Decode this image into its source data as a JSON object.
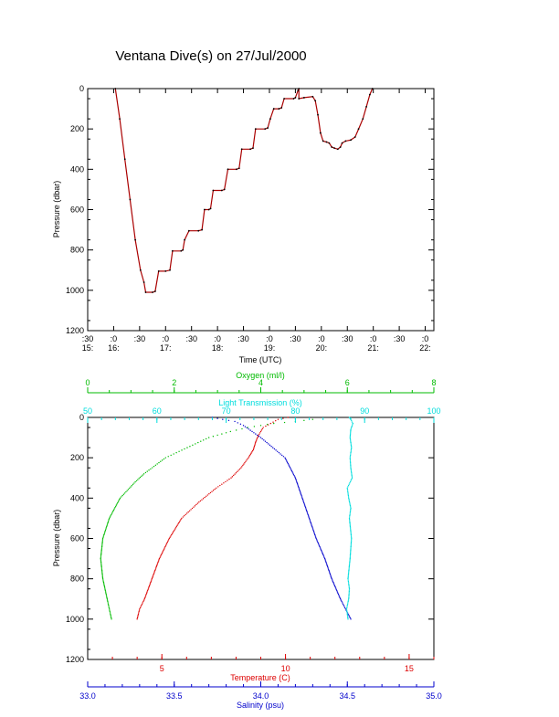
{
  "page_title": "Ventana Dive(s) on 27/Jul/2000",
  "colors": {
    "black": "#000000",
    "dive_track": "#aa0000",
    "temperature": "#dd0000",
    "salinity": "#0000cc",
    "oxygen": "#00bb00",
    "light_transmission": "#00dddd"
  },
  "chart_data": [
    {
      "type": "line",
      "name": "dive-profile",
      "xlabel": "Time (UTC)",
      "ylabel": "Pressure (dbar)",
      "xlim": [
        "15:30",
        "22:10"
      ],
      "ylim": [
        1200,
        0
      ],
      "y_ticks": [
        "0",
        "200",
        "400",
        "600",
        "800",
        "1000",
        "1200"
      ],
      "x_ticks": [
        {
          "t": "15:30",
          "minute": ":30",
          "hour": "15:"
        },
        {
          "t": "16:00",
          "minute": ":0",
          "hour": "16:"
        },
        {
          "t": "16:30",
          "minute": ":30",
          "hour": ""
        },
        {
          "t": "17:00",
          "minute": ":0",
          "hour": "17:"
        },
        {
          "t": "17:30",
          "minute": ":30",
          "hour": ""
        },
        {
          "t": "18:00",
          "minute": ":0",
          "hour": "18:"
        },
        {
          "t": "18:30",
          "minute": ":30",
          "hour": ""
        },
        {
          "t": "19:00",
          "minute": ":0",
          "hour": "19:"
        },
        {
          "t": "19:30",
          "minute": ":30",
          "hour": ""
        },
        {
          "t": "20:00",
          "minute": ":0",
          "hour": "20:"
        },
        {
          "t": "20:30",
          "minute": ":30",
          "hour": ""
        },
        {
          "t": "21:00",
          "minute": ":0",
          "hour": "21:"
        },
        {
          "t": "21:30",
          "minute": ":30",
          "hour": ""
        },
        {
          "t": "22:00",
          "minute": ":0",
          "hour": "22:"
        }
      ],
      "series": [
        {
          "points": [
            [
              "16:02",
              0
            ],
            [
              "16:07",
              150
            ],
            [
              "16:13",
              350
            ],
            [
              "16:19",
              550
            ],
            [
              "16:25",
              750
            ],
            [
              "16:31",
              900
            ],
            [
              "16:35",
              960
            ],
            [
              "16:37",
              1010
            ],
            [
              "16:45",
              1010
            ],
            [
              "16:48",
              1005
            ],
            [
              "16:52",
              905
            ],
            [
              "17:00",
              905
            ],
            [
              "17:05",
              900
            ],
            [
              "17:08",
              805
            ],
            [
              "17:18",
              805
            ],
            [
              "17:20",
              800
            ],
            [
              "17:22",
              750
            ],
            [
              "17:27",
              705
            ],
            [
              "17:38",
              705
            ],
            [
              "17:42",
              700
            ],
            [
              "17:45",
              600
            ],
            [
              "17:50",
              600
            ],
            [
              "17:52",
              595
            ],
            [
              "17:55",
              505
            ],
            [
              "18:05",
              505
            ],
            [
              "18:08",
              500
            ],
            [
              "18:12",
              400
            ],
            [
              "18:22",
              400
            ],
            [
              "18:25",
              395
            ],
            [
              "18:28",
              300
            ],
            [
              "18:38",
              300
            ],
            [
              "18:41",
              295
            ],
            [
              "18:44",
              200
            ],
            [
              "18:55",
              200
            ],
            [
              "18:58",
              195
            ],
            [
              "19:01",
              150
            ],
            [
              "19:05",
              100
            ],
            [
              "19:11",
              100
            ],
            [
              "19:14",
              95
            ],
            [
              "19:17",
              50
            ],
            [
              "19:28",
              50
            ],
            [
              "19:30",
              45
            ],
            [
              "19:33",
              10
            ],
            [
              "19:34",
              0
            ],
            [
              "19:34",
              50
            ],
            [
              "19:40",
              45
            ],
            [
              "19:50",
              40
            ],
            [
              "19:53",
              60
            ],
            [
              "19:56",
              130
            ],
            [
              "19:59",
              220
            ],
            [
              "20:02",
              260
            ],
            [
              "20:06",
              265
            ],
            [
              "20:09",
              270
            ],
            [
              "20:12",
              290
            ],
            [
              "20:15",
              295
            ],
            [
              "20:19",
              300
            ],
            [
              "20:22",
              290
            ],
            [
              "20:24",
              270
            ],
            [
              "20:28",
              260
            ],
            [
              "20:34",
              255
            ],
            [
              "20:39",
              240
            ],
            [
              "20:43",
              200
            ],
            [
              "20:48",
              150
            ],
            [
              "20:52",
              90
            ],
            [
              "20:56",
              30
            ],
            [
              "20:59",
              0
            ]
          ]
        }
      ]
    },
    {
      "type": "scatter",
      "name": "ctd-profiles",
      "ylabel": "Pressure (dbar)",
      "ylim": [
        1200,
        0
      ],
      "y_ticks": [
        "0",
        "200",
        "400",
        "600",
        "800",
        "1000",
        "1200"
      ],
      "axes": {
        "temperature": {
          "label": "Temperature (C)",
          "range": [
            2,
            16
          ],
          "ticks": [
            "5",
            "10",
            "15"
          ]
        },
        "salinity": {
          "label": "Salinity (psu)",
          "range": [
            33.0,
            35.0
          ],
          "ticks": [
            "33.0",
            "33.5",
            "34.0",
            "34.5",
            "35.0"
          ]
        },
        "oxygen": {
          "label": "Oxygen (ml/l)",
          "range": [
            0,
            8
          ],
          "ticks": [
            "0",
            "2",
            "4",
            "6",
            "8"
          ]
        },
        "light_transmission": {
          "label": "Light Transmission (%)",
          "range": [
            50,
            100
          ],
          "ticks": [
            "50",
            "60",
            "70",
            "80",
            "90",
            "100"
          ]
        }
      },
      "series": [
        {
          "name": "Temperature (C)",
          "points": [
            [
              4.0,
              1000
            ],
            [
              4.1,
              950
            ],
            [
              4.3,
              900
            ],
            [
              4.6,
              800
            ],
            [
              4.9,
              700
            ],
            [
              5.3,
              600
            ],
            [
              5.8,
              500
            ],
            [
              6.5,
              420
            ],
            [
              7.2,
              350
            ],
            [
              7.8,
              300
            ],
            [
              8.2,
              250
            ],
            [
              8.5,
              200
            ],
            [
              8.7,
              160
            ],
            [
              8.8,
              120
            ],
            [
              8.9,
              90
            ],
            [
              9.0,
              70
            ],
            [
              9.1,
              50
            ],
            [
              9.4,
              30
            ],
            [
              9.7,
              10
            ],
            [
              10.1,
              0
            ]
          ]
        },
        {
          "name": "Salinity (psu)",
          "points": [
            [
              34.52,
              1000
            ],
            [
              34.49,
              950
            ],
            [
              34.46,
              900
            ],
            [
              34.41,
              800
            ],
            [
              34.37,
              700
            ],
            [
              34.32,
              600
            ],
            [
              34.28,
              500
            ],
            [
              34.24,
              400
            ],
            [
              34.2,
              300
            ],
            [
              34.14,
              200
            ],
            [
              34.07,
              150
            ],
            [
              34.0,
              100
            ],
            [
              33.95,
              70
            ],
            [
              33.9,
              40
            ],
            [
              33.85,
              20
            ],
            [
              33.78,
              10
            ],
            [
              33.72,
              0
            ]
          ]
        },
        {
          "name": "Oxygen (ml/l)",
          "points": [
            [
              0.55,
              1000
            ],
            [
              0.5,
              950
            ],
            [
              0.45,
              900
            ],
            [
              0.35,
              800
            ],
            [
              0.3,
              700
            ],
            [
              0.35,
              600
            ],
            [
              0.5,
              500
            ],
            [
              0.75,
              400
            ],
            [
              1.1,
              320
            ],
            [
              1.3,
              280
            ],
            [
              1.8,
              200
            ],
            [
              2.3,
              150
            ],
            [
              2.8,
              100
            ],
            [
              3.3,
              70
            ],
            [
              3.7,
              50
            ],
            [
              4.0,
              40
            ],
            [
              4.3,
              30
            ],
            [
              4.8,
              20
            ],
            [
              5.2,
              10
            ]
          ]
        },
        {
          "name": "Light Transmission (%)",
          "points": [
            [
              87.6,
              1000
            ],
            [
              87.4,
              950
            ],
            [
              87.7,
              900
            ],
            [
              87.8,
              850
            ],
            [
              87.6,
              800
            ],
            [
              87.9,
              700
            ],
            [
              88.1,
              600
            ],
            [
              87.8,
              500
            ],
            [
              88.0,
              450
            ],
            [
              87.7,
              400
            ],
            [
              87.5,
              350
            ],
            [
              88.2,
              300
            ],
            [
              88.0,
              250
            ],
            [
              87.9,
              200
            ],
            [
              88.1,
              150
            ],
            [
              87.9,
              100
            ],
            [
              88.0,
              60
            ],
            [
              88.3,
              30
            ],
            [
              88.0,
              10
            ],
            [
              87.8,
              0
            ]
          ]
        }
      ]
    }
  ]
}
